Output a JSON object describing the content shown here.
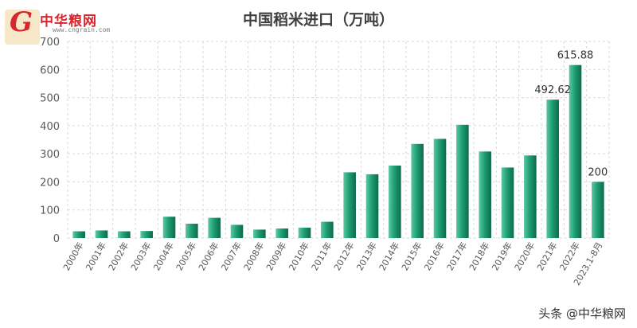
{
  "logo": {
    "name": "中华粮网",
    "url": "www.cngrain.com",
    "mark": "G"
  },
  "watermark": "头条 @中华粮网",
  "chart_data": {
    "type": "bar",
    "title": "中国稻米进口（万吨）",
    "categories": [
      "2000年",
      "2001年",
      "2002年",
      "2003年",
      "2004年",
      "2005年",
      "2006年",
      "2007年",
      "2008年",
      "2009年",
      "2010年",
      "2011年",
      "2012年",
      "2013年",
      "2014年",
      "2015年",
      "2016年",
      "2017年",
      "2018年",
      "2019年",
      "2020年",
      "2021年",
      "2022年",
      "2023.1-8月"
    ],
    "values": [
      24,
      27,
      24,
      25,
      76,
      51,
      72,
      47,
      30,
      34,
      37,
      58,
      234,
      227,
      258,
      335,
      353,
      403,
      308,
      251,
      294,
      492.62,
      615.88,
      200
    ],
    "data_labels": [
      {
        "index": 21,
        "text": "492.62"
      },
      {
        "index": 22,
        "text": "615.88"
      },
      {
        "index": 23,
        "text": "200"
      }
    ],
    "y_ticks": [
      "0",
      "100",
      "200",
      "300",
      "400",
      "500",
      "600",
      "700"
    ],
    "ylim": [
      0,
      700
    ],
    "grid": true,
    "bar_color": "#1f9e73"
  }
}
